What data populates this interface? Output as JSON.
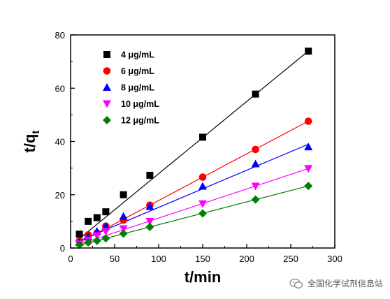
{
  "chart_data": {
    "type": "scatter",
    "title": "",
    "xlabel": "t/min",
    "ylabel": "t/q",
    "ylabel_subscript": "t",
    "xlim": [
      0,
      300
    ],
    "ylim": [
      0,
      80
    ],
    "xticks": [
      0,
      50,
      100,
      150,
      200,
      250,
      300
    ],
    "yticks": [
      0,
      20,
      40,
      60,
      80
    ],
    "grid": false,
    "legend_position": "top-left",
    "x": [
      10,
      20,
      30,
      40,
      60,
      90,
      150,
      210,
      270
    ],
    "series": [
      {
        "name": "4 μg/mL",
        "marker": "square",
        "color": "#000000",
        "values": [
          5.2,
          10.0,
          11.4,
          13.6,
          20.0,
          27.3,
          41.6,
          57.8,
          73.9
        ],
        "fit": [
          0.8,
          0.271
        ]
      },
      {
        "name": "6 μg/mL",
        "marker": "circle",
        "color": "#ff0000",
        "values": [
          2.6,
          4.9,
          5.6,
          8.2,
          10.5,
          16.1,
          26.6,
          37.0,
          47.6
        ],
        "fit": [
          0.3,
          0.1753
        ]
      },
      {
        "name": "8 μg/mL",
        "marker": "triangle-up",
        "color": "#0000ff",
        "values": [
          2.2,
          4.2,
          6.3,
          8.2,
          11.9,
          15.6,
          23.2,
          31.6,
          38.0
        ],
        "fit": [
          1.3,
          0.1395
        ]
      },
      {
        "name": "10 μg/mL",
        "marker": "triangle-down",
        "color": "#ff00ff",
        "values": [
          1.5,
          3.0,
          4.6,
          6.2,
          7.2,
          10.0,
          16.6,
          23.2,
          29.8
        ],
        "fit": [
          0.3,
          0.1094
        ]
      },
      {
        "name": "12 μg/mL",
        "marker": "diamond",
        "color": "#008000",
        "values": [
          1.2,
          2.1,
          2.7,
          3.6,
          5.4,
          7.9,
          13.0,
          18.2,
          23.3
        ],
        "fit": [
          0.2,
          0.0855
        ]
      }
    ]
  },
  "watermark": {
    "icon": "wechat-icon",
    "text": "全国化学试剂信息站"
  }
}
